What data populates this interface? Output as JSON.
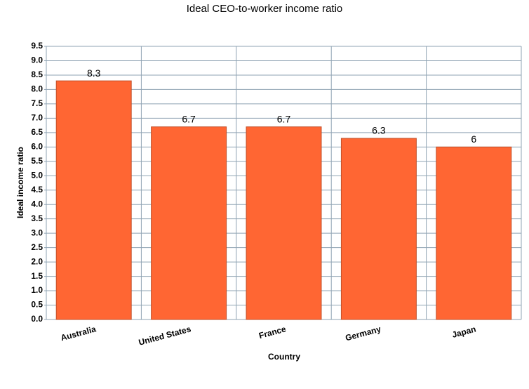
{
  "chart_data": {
    "type": "bar",
    "title": "Ideal CEO-to-worker income ratio",
    "x_label": "Country",
    "y_label": "Ideal income ratio",
    "categories": [
      "Australia",
      "United States",
      "France",
      "Germany",
      "Japan"
    ],
    "values": [
      8.3,
      6.7,
      6.7,
      6.3,
      6
    ],
    "color": "#ff6633",
    "ylim": [
      0,
      9.5
    ],
    "yticks": [
      {
        "value": 0,
        "label": "0.0"
      },
      0.5,
      {
        "value": 1,
        "label": "1.0"
      },
      1.5,
      {
        "value": 2,
        "label": "2.0"
      },
      2.5,
      {
        "value": 3,
        "label": "3.0"
      },
      3.5,
      {
        "value": 4,
        "label": "4.0"
      },
      4.5,
      {
        "value": 5,
        "label": "5.0"
      },
      5.5,
      {
        "value": 6,
        "label": "6.0"
      },
      6.5,
      {
        "value": 7,
        "label": "7.0"
      },
      7.5,
      {
        "value": 8,
        "label": "8.0"
      },
      8.5,
      {
        "value": 9,
        "label": "9.0"
      },
      9.5
    ],
    "grid": true
  }
}
